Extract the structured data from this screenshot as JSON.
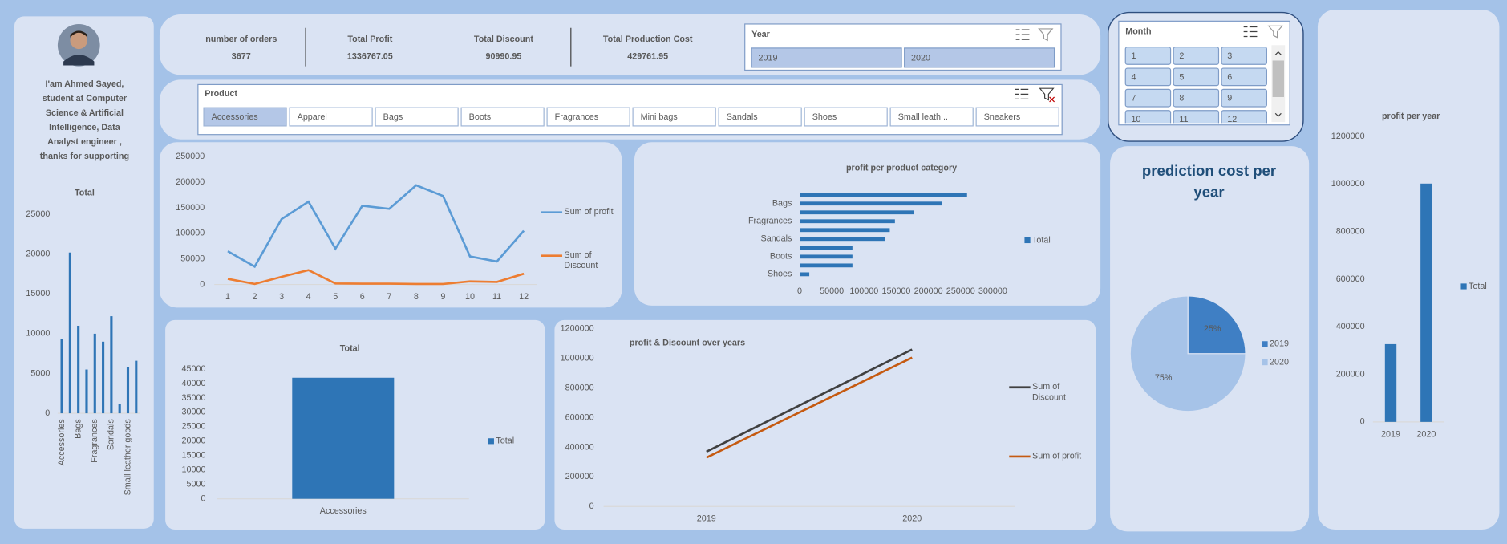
{
  "profile": {
    "lines": [
      "I'am Ahmed Sayed,",
      "student at Computer",
      "Science & Artificial",
      "Intelligence, Data",
      "Analyst engineer ,",
      "thanks for supporting"
    ]
  },
  "kpis": [
    {
      "label": "number of orders",
      "value": 3677
    },
    {
      "label": "Total Profit",
      "value": 1336767.05
    },
    {
      "label": "Total Discount",
      "value": 90990.95
    },
    {
      "label": "Total Production Cost",
      "value": 429761.95
    }
  ],
  "year_slicer": {
    "title": "Year",
    "items": [
      "2019",
      "2020"
    ]
  },
  "product_slicer": {
    "title": "Product",
    "items": [
      {
        "label": "Accessories",
        "selected": true
      },
      {
        "label": "Apparel"
      },
      {
        "label": "Bags"
      },
      {
        "label": "Boots"
      },
      {
        "label": "Fragrances"
      },
      {
        "label": "Mini bags"
      },
      {
        "label": "Sandals"
      },
      {
        "label": "Shoes"
      },
      {
        "label": "Small leath..."
      },
      {
        "label": "Sneakers"
      }
    ]
  },
  "month_slicer": {
    "title": "Month",
    "items": [
      1,
      2,
      3,
      4,
      5,
      6,
      7,
      8,
      9,
      10,
      11,
      12
    ]
  },
  "chart_data": [
    {
      "type": "bar",
      "title": "Total",
      "categories": [
        "Accessories",
        null,
        "Bags",
        null,
        "Fragrances",
        null,
        "Sandals",
        null,
        "Small leather goods",
        null
      ],
      "values": [
        9300,
        20200,
        11000,
        5500,
        10000,
        9000,
        12200,
        1200,
        5800,
        6600
      ],
      "color": "#2e75b6",
      "ylim": [
        0,
        25000
      ],
      "yticks": [
        0,
        5000,
        10000,
        15000,
        20000,
        25000
      ]
    },
    {
      "type": "line",
      "categories": [
        "1",
        "2",
        "3",
        "4",
        "5",
        "6",
        "7",
        "8",
        "9",
        "10",
        "11",
        "12"
      ],
      "series": [
        {
          "name": "Sum of profit",
          "color": "#5b9bd5",
          "values": [
            65000,
            35000,
            128000,
            162000,
            70000,
            154000,
            148000,
            194000,
            173000,
            55000,
            45000,
            105000
          ]
        },
        {
          "name": "Sum of Discount",
          "color": "#ed7d31",
          "values": [
            11000,
            1000,
            15000,
            28000,
            2000,
            1500,
            1500,
            1000,
            1000,
            6000,
            5000,
            21000
          ]
        }
      ],
      "ylim": [
        0,
        250000
      ],
      "yticks": [
        0,
        50000,
        100000,
        150000,
        200000,
        250000
      ]
    },
    {
      "type": "barh",
      "title": "profit per product category",
      "categories": [
        "Shoes",
        null,
        "Boots",
        null,
        "Sandals",
        null,
        "Fragrances",
        null,
        "Bags",
        null
      ],
      "series": [
        {
          "name": "Total",
          "color": "#2e75b6",
          "values": [
            15000,
            82000,
            82000,
            82000,
            133000,
            140000,
            148000,
            178000,
            221000,
            260000
          ]
        }
      ],
      "xlim": [
        0,
        300000
      ],
      "xticks": [
        0,
        50000,
        100000,
        150000,
        200000,
        250000,
        300000
      ]
    },
    {
      "type": "bar",
      "title": "Total",
      "categories": [
        "Accessories"
      ],
      "series": [
        {
          "name": "Total",
          "color": "#2e75b6",
          "values": [
            42000
          ]
        }
      ],
      "ylim": [
        0,
        45000
      ],
      "yticks": [
        0,
        5000,
        10000,
        15000,
        20000,
        25000,
        30000,
        35000,
        40000,
        45000
      ]
    },
    {
      "type": "line",
      "title": "profit & Discount over years",
      "categories": [
        "2019",
        "2020"
      ],
      "series": [
        {
          "name": "Sum of Discount",
          "color": "#404040",
          "values": [
            370000,
            1060000
          ]
        },
        {
          "name": "Sum of profit",
          "color": "#c55a11",
          "values": [
            330000,
            1005000
          ]
        }
      ],
      "ylim": [
        0,
        1200000
      ],
      "yticks": [
        0,
        200000,
        400000,
        600000,
        800000,
        1000000,
        1200000
      ]
    },
    {
      "type": "pie",
      "title": "prediction cost per year",
      "categories": [
        "2019",
        "2020"
      ],
      "values": [
        25,
        75
      ],
      "value_labels": [
        "25%",
        "75%"
      ],
      "colors": [
        "#3f7fc4",
        "#a6c3e8"
      ]
    },
    {
      "type": "bar",
      "title": "profit per year",
      "categories": [
        "2019",
        "2020"
      ],
      "series": [
        {
          "name": "Total",
          "color": "#2e75b6",
          "values": [
            327000,
            1002000
          ]
        }
      ],
      "ylim": [
        0,
        1200000
      ],
      "yticks": [
        0,
        200000,
        400000,
        600000,
        800000,
        1000000,
        1200000
      ]
    }
  ]
}
